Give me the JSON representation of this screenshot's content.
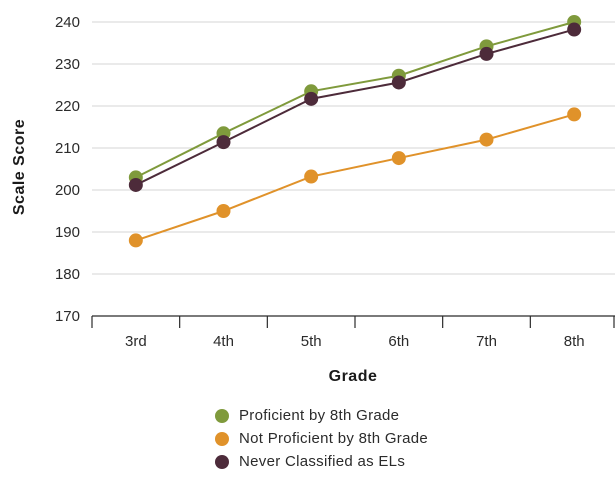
{
  "chart_data": {
    "type": "line",
    "categories": [
      "3rd",
      "4th",
      "5th",
      "6th",
      "7th",
      "8th"
    ],
    "xlabel": "Grade",
    "ylabel": "Scale Score",
    "ylim": [
      170,
      240
    ],
    "yticks": [
      170,
      180,
      190,
      200,
      210,
      220,
      230,
      240
    ],
    "grid": true,
    "legend_position": "bottom",
    "series": [
      {
        "name": "Proficient by 8th Grade",
        "color": "#7f9a3c",
        "values": [
          203,
          213.5,
          223.5,
          227.2,
          234.2,
          240
        ]
      },
      {
        "name": "Not Proficient by 8th Grade",
        "color": "#e0922a",
        "values": [
          188,
          195,
          203.2,
          207.6,
          212,
          218
        ]
      },
      {
        "name": "Never Classified as ELs",
        "color": "#4d2b3a",
        "values": [
          201.2,
          211.4,
          221.7,
          225.6,
          232.4,
          238.2
        ]
      }
    ]
  }
}
